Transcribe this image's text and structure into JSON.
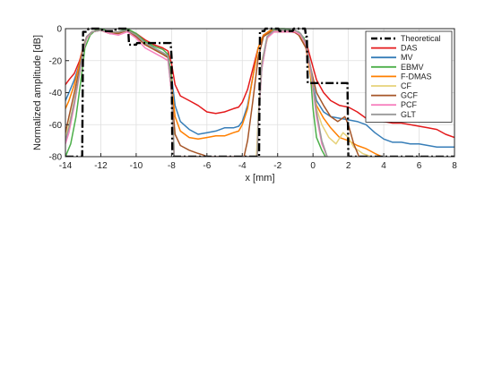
{
  "chart_data": {
    "type": "line",
    "title": "",
    "xlabel": "x [mm]",
    "ylabel": "Normalized amplitude [dB]",
    "xlim": [
      -14,
      8
    ],
    "ylim": [
      -80,
      0
    ],
    "xticks": [
      -14,
      -12,
      -10,
      -8,
      -6,
      -4,
      -2,
      0,
      2,
      4,
      6,
      8
    ],
    "yticks": [
      -80,
      -60,
      -40,
      -20,
      0
    ],
    "xtick_labels": [
      "-14",
      "-12",
      "-10",
      "-8",
      "-6",
      "-4",
      "-2",
      "0",
      "2",
      "4",
      "6",
      "8"
    ],
    "ytick_labels": [
      "-80",
      "-60",
      "-40",
      "-20",
      "0"
    ],
    "grid": true,
    "legend_position": "top-right",
    "series": [
      {
        "name": "Theoretical",
        "color": "#000000",
        "style": "dashdot",
        "x": [
          -14,
          -13.05,
          -13,
          -12.75,
          -12.7,
          -11.95,
          -11.9,
          -11.2,
          -11.15,
          -10.45,
          -10.4,
          -10.0,
          -9.95,
          -8.05,
          -8.0,
          -7.95,
          -7.9,
          -3.05,
          -3.0,
          -2.75,
          -2.7,
          -1.95,
          -1.9,
          -1.15,
          -1.1,
          -0.45,
          -0.4,
          -0.35,
          -0.3,
          1.95,
          2.0,
          2.05,
          8
        ],
        "y": [
          -80,
          -80,
          -2,
          -2,
          0,
          0,
          -1.5,
          -1.5,
          0,
          0,
          -10,
          -10,
          -9,
          -9,
          -18,
          -80,
          -80,
          -80,
          -1.5,
          -1.5,
          0,
          0,
          -1.5,
          -1.5,
          0,
          0,
          -5,
          -5,
          -34,
          -34,
          -80,
          -80,
          -80
        ]
      },
      {
        "name": "DAS",
        "color": "#e41a1c",
        "x": [
          -14,
          -13.8,
          -13.5,
          -13.2,
          -13.0,
          -12.8,
          -12.5,
          -12,
          -11.5,
          -11,
          -10.5,
          -10,
          -9.5,
          -9,
          -8.5,
          -8.2,
          -8.0,
          -7.8,
          -7.5,
          -7,
          -6.5,
          -6,
          -5.5,
          -5,
          -4.5,
          -4.2,
          -4.0,
          -3.7,
          -3.4,
          -3.1,
          -2.8,
          -2.4,
          -2,
          -1.6,
          -1.2,
          -0.8,
          -0.4,
          -0.1,
          0.2,
          0.6,
          1.0,
          1.5,
          2.0,
          2.5,
          3,
          3.5,
          4,
          4.5,
          5,
          5.5,
          6,
          6.5,
          7,
          7.5,
          8
        ],
        "y": [
          -35,
          -32,
          -28,
          -20,
          -12,
          -6,
          -2,
          -1,
          -2,
          -2,
          -1,
          -3,
          -7,
          -10,
          -12,
          -14,
          -22,
          -35,
          -42,
          -45,
          -48,
          -52,
          -53,
          -52,
          -50,
          -49,
          -46,
          -38,
          -25,
          -12,
          -4,
          -2,
          -2,
          -2,
          -2,
          -3,
          -8,
          -20,
          -32,
          -40,
          -45,
          -48,
          -49,
          -52,
          -56,
          -58,
          -58,
          -59,
          -59,
          -60,
          -61,
          -62,
          -63,
          -66,
          -68
        ]
      },
      {
        "name": "MV",
        "color": "#377eb8",
        "x": [
          -14,
          -13.8,
          -13.5,
          -13.2,
          -13.0,
          -12.8,
          -12.5,
          -12,
          -11.5,
          -11,
          -10.5,
          -10,
          -9.5,
          -9,
          -8.5,
          -8.2,
          -8.0,
          -7.8,
          -7.5,
          -7,
          -6.5,
          -6,
          -5.5,
          -5,
          -4.5,
          -4.2,
          -4.0,
          -3.7,
          -3.4,
          -3.1,
          -2.8,
          -2.4,
          -2,
          -1.6,
          -1.2,
          -0.8,
          -0.4,
          -0.1,
          0.2,
          0.6,
          1.0,
          1.5,
          2.0,
          2.5,
          3,
          3.5,
          4,
          4.5,
          5,
          5.5,
          6,
          6.5,
          7,
          7.5,
          8
        ],
        "y": [
          -45,
          -40,
          -32,
          -22,
          -12,
          -6,
          -2,
          -1,
          -3,
          -3,
          -1,
          -5,
          -9,
          -12,
          -15,
          -17,
          -30,
          -48,
          -58,
          -63,
          -66,
          -65,
          -64,
          -62,
          -62,
          -61,
          -58,
          -48,
          -30,
          -12,
          -4,
          -1,
          -2,
          -2,
          -1,
          -4,
          -10,
          -30,
          -45,
          -52,
          -55,
          -56,
          -57,
          -58,
          -60,
          -65,
          -69,
          -71,
          -71,
          -72,
          -72,
          -73,
          -74,
          -74,
          -74
        ]
      },
      {
        "name": "EBMV",
        "color": "#4daf4a",
        "x": [
          -14,
          -13.7,
          -13.4,
          -13.1,
          -12.9,
          -12.6,
          -12.3,
          -12,
          -11.5,
          -11,
          -10.5,
          -10,
          -9.5,
          -9,
          -8.5,
          -8.2,
          -8.0,
          -7.9,
          -7.85,
          -3.15,
          -3.1,
          -2.9,
          -2.6,
          -2.3,
          -2,
          -1.6,
          -1.2,
          -0.8,
          -0.5,
          -0.2,
          0.0,
          0.2,
          0.5,
          0.7
        ],
        "y": [
          -80,
          -72,
          -55,
          -30,
          -12,
          -4,
          -1,
          0,
          -2,
          -2,
          0,
          -3,
          -8,
          -11,
          -13,
          -16,
          -30,
          -60,
          -80,
          -80,
          -60,
          -25,
          -6,
          -1,
          0,
          0,
          -1,
          -2,
          -6,
          -20,
          -50,
          -68,
          -76,
          -80
        ]
      },
      {
        "name": "F-DMAS",
        "color": "#ff7f00",
        "x": [
          -14,
          -13.8,
          -13.5,
          -13.2,
          -13.0,
          -12.8,
          -12.5,
          -12,
          -11.5,
          -11,
          -10.5,
          -10,
          -9.5,
          -9,
          -8.5,
          -8.2,
          -8.0,
          -7.8,
          -7.5,
          -7,
          -6.5,
          -6,
          -5.5,
          -5,
          -4.5,
          -4.2,
          -4.0,
          -3.7,
          -3.4,
          -3.1,
          -2.8,
          -2.4,
          -2,
          -1.6,
          -1.2,
          -0.8,
          -0.4,
          -0.1,
          0.2,
          0.6,
          1.0,
          1.5,
          2.0,
          2.5,
          3,
          3.5,
          3.9
        ],
        "y": [
          -50,
          -45,
          -35,
          -22,
          -12,
          -5,
          -2,
          -1,
          -3,
          -3,
          -1,
          -5,
          -10,
          -13,
          -16,
          -18,
          -35,
          -55,
          -64,
          -68,
          -69,
          -68,
          -67,
          -67,
          -65,
          -64,
          -60,
          -50,
          -30,
          -12,
          -4,
          -1,
          -2,
          -2,
          -1,
          -4,
          -12,
          -32,
          -48,
          -56,
          -62,
          -68,
          -70,
          -73,
          -75,
          -78,
          -80
        ]
      },
      {
        "name": "CF",
        "color": "#e6d27a",
        "x": [
          -14,
          -13.8,
          -13.5,
          -13.2,
          -13.0,
          -12.8,
          -12.5,
          -12,
          -11.5,
          -11,
          -10.5,
          -10,
          -9.5,
          -9,
          -8.5,
          -8.2,
          -8.0,
          -7.85,
          -3.2,
          -3.1,
          -2.9,
          -2.5,
          -2,
          -1.6,
          -1.2,
          -0.8,
          -0.4,
          -0.1,
          0.2,
          0.5,
          0.9,
          1.3,
          1.7,
          2.0,
          2.3,
          2.8,
          3.3
        ],
        "y": [
          -68,
          -60,
          -45,
          -28,
          -14,
          -6,
          -2,
          -1,
          -3,
          -3,
          -1,
          -5,
          -10,
          -13,
          -16,
          -18,
          -40,
          -80,
          -80,
          -55,
          -20,
          -3,
          -1,
          -1,
          -1,
          -3,
          -10,
          -30,
          -50,
          -60,
          -68,
          -72,
          -65,
          -68,
          -74,
          -78,
          -80
        ]
      },
      {
        "name": "GCF",
        "color": "#a65628",
        "x": [
          -14,
          -13.8,
          -13.5,
          -13.2,
          -13.0,
          -12.8,
          -12.5,
          -12,
          -11.5,
          -11,
          -10.5,
          -10,
          -9.5,
          -9,
          -8.5,
          -8.2,
          -8.0,
          -7.8,
          -7.5,
          -7,
          -6.5,
          -6.2,
          -6.0,
          -3.9,
          -3.7,
          -3.4,
          -3.1,
          -2.8,
          -2.4,
          -2,
          -1.6,
          -1.2,
          -0.8,
          -0.4,
          -0.1,
          0.2,
          0.6,
          1.0,
          1.4,
          1.8,
          2.0,
          2.3,
          2.6
        ],
        "y": [
          -65,
          -55,
          -40,
          -25,
          -12,
          -5,
          -2,
          -1,
          -3,
          -3,
          -1,
          -5,
          -10,
          -13,
          -16,
          -18,
          -40,
          -66,
          -73,
          -76,
          -78,
          -79,
          -80,
          -80,
          -70,
          -45,
          -18,
          -5,
          -2,
          -2,
          -2,
          -1,
          -4,
          -12,
          -26,
          -40,
          -48,
          -55,
          -58,
          -55,
          -60,
          -72,
          -80
        ]
      },
      {
        "name": "PCF",
        "color": "#f781bf",
        "x": [
          -14,
          -13.8,
          -13.5,
          -13.2,
          -13.0,
          -12.8,
          -12.5,
          -12,
          -11.5,
          -11,
          -10.5,
          -10,
          -9.5,
          -9,
          -8.5,
          -8.2,
          -8.0,
          -7.9,
          -7.85,
          -3.15,
          -3.1,
          -2.9,
          -2.6,
          -2.2,
          -1.8,
          -1.4,
          -1.0,
          -0.7,
          -0.4,
          -0.1,
          0.2,
          0.5,
          0.8
        ],
        "y": [
          -72,
          -65,
          -48,
          -28,
          -14,
          -6,
          -2,
          -1,
          -3,
          -4,
          -2,
          -6,
          -12,
          -15,
          -18,
          -20,
          -40,
          -65,
          -80,
          -80,
          -60,
          -25,
          -6,
          -2,
          -2,
          -2,
          -2,
          -4,
          -10,
          -28,
          -55,
          -72,
          -80
        ]
      },
      {
        "name": "GLT",
        "color": "#999999",
        "x": [
          -14,
          -13.8,
          -13.5,
          -13.2,
          -13.0,
          -12.8,
          -12.5,
          -12,
          -11.5,
          -11,
          -10.5,
          -10,
          -9.5,
          -9,
          -8.5,
          -8.2,
          -8.0,
          -7.9,
          -7.85,
          -3.15,
          -3.1,
          -2.9,
          -2.6,
          -2.2,
          -1.8,
          -1.4,
          -1.0,
          -0.7,
          -0.4,
          -0.1,
          0.2,
          0.5,
          0.8
        ],
        "y": [
          -70,
          -62,
          -46,
          -27,
          -13,
          -5,
          -2,
          -1,
          -2,
          -2,
          -1,
          -4,
          -9,
          -12,
          -15,
          -17,
          -38,
          -65,
          -80,
          -80,
          -58,
          -22,
          -5,
          -1,
          -1,
          -1,
          -1,
          -3,
          -9,
          -26,
          -52,
          -70,
          -80
        ]
      }
    ]
  }
}
